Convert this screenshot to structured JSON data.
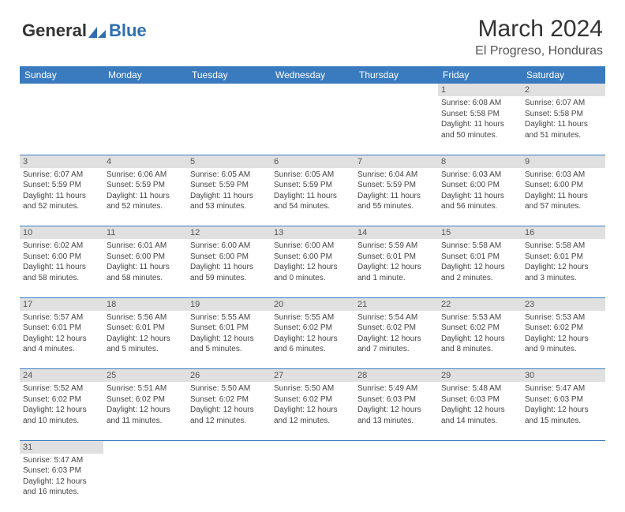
{
  "logo": {
    "part1": "General",
    "part2": "Blue"
  },
  "title": "March 2024",
  "location": "El Progreso, Honduras",
  "colors": {
    "header_bg": "#3a7bbf",
    "header_text": "#ffffff",
    "daynum_bg": "#e0e0e0",
    "daynum_text": "#555555",
    "cell_text": "#444444",
    "title_text": "#333333",
    "logo_dark": "#333333",
    "logo_blue": "#2f6fb1",
    "page_bg": "#ffffff",
    "divider": "#3a7bbf"
  },
  "typography": {
    "month_title_pt": 30,
    "location_pt": 16,
    "weekday_pt": 12,
    "daynum_pt": 11,
    "cell_pt": 10,
    "logo_pt": 22
  },
  "weekdays": [
    "Sunday",
    "Monday",
    "Tuesday",
    "Wednesday",
    "Thursday",
    "Friday",
    "Saturday"
  ],
  "weeks": [
    [
      null,
      null,
      null,
      null,
      null,
      {
        "n": "1",
        "sunrise": "Sunrise: 6:08 AM",
        "sunset": "Sunset: 5:58 PM",
        "day1": "Daylight: 11 hours",
        "day2": "and 50 minutes."
      },
      {
        "n": "2",
        "sunrise": "Sunrise: 6:07 AM",
        "sunset": "Sunset: 5:58 PM",
        "day1": "Daylight: 11 hours",
        "day2": "and 51 minutes."
      }
    ],
    [
      {
        "n": "3",
        "sunrise": "Sunrise: 6:07 AM",
        "sunset": "Sunset: 5:59 PM",
        "day1": "Daylight: 11 hours",
        "day2": "and 52 minutes."
      },
      {
        "n": "4",
        "sunrise": "Sunrise: 6:06 AM",
        "sunset": "Sunset: 5:59 PM",
        "day1": "Daylight: 11 hours",
        "day2": "and 52 minutes."
      },
      {
        "n": "5",
        "sunrise": "Sunrise: 6:05 AM",
        "sunset": "Sunset: 5:59 PM",
        "day1": "Daylight: 11 hours",
        "day2": "and 53 minutes."
      },
      {
        "n": "6",
        "sunrise": "Sunrise: 6:05 AM",
        "sunset": "Sunset: 5:59 PM",
        "day1": "Daylight: 11 hours",
        "day2": "and 54 minutes."
      },
      {
        "n": "7",
        "sunrise": "Sunrise: 6:04 AM",
        "sunset": "Sunset: 5:59 PM",
        "day1": "Daylight: 11 hours",
        "day2": "and 55 minutes."
      },
      {
        "n": "8",
        "sunrise": "Sunrise: 6:03 AM",
        "sunset": "Sunset: 6:00 PM",
        "day1": "Daylight: 11 hours",
        "day2": "and 56 minutes."
      },
      {
        "n": "9",
        "sunrise": "Sunrise: 6:03 AM",
        "sunset": "Sunset: 6:00 PM",
        "day1": "Daylight: 11 hours",
        "day2": "and 57 minutes."
      }
    ],
    [
      {
        "n": "10",
        "sunrise": "Sunrise: 6:02 AM",
        "sunset": "Sunset: 6:00 PM",
        "day1": "Daylight: 11 hours",
        "day2": "and 58 minutes."
      },
      {
        "n": "11",
        "sunrise": "Sunrise: 6:01 AM",
        "sunset": "Sunset: 6:00 PM",
        "day1": "Daylight: 11 hours",
        "day2": "and 58 minutes."
      },
      {
        "n": "12",
        "sunrise": "Sunrise: 6:00 AM",
        "sunset": "Sunset: 6:00 PM",
        "day1": "Daylight: 11 hours",
        "day2": "and 59 minutes."
      },
      {
        "n": "13",
        "sunrise": "Sunrise: 6:00 AM",
        "sunset": "Sunset: 6:00 PM",
        "day1": "Daylight: 12 hours",
        "day2": "and 0 minutes."
      },
      {
        "n": "14",
        "sunrise": "Sunrise: 5:59 AM",
        "sunset": "Sunset: 6:01 PM",
        "day1": "Daylight: 12 hours",
        "day2": "and 1 minute."
      },
      {
        "n": "15",
        "sunrise": "Sunrise: 5:58 AM",
        "sunset": "Sunset: 6:01 PM",
        "day1": "Daylight: 12 hours",
        "day2": "and 2 minutes."
      },
      {
        "n": "16",
        "sunrise": "Sunrise: 5:58 AM",
        "sunset": "Sunset: 6:01 PM",
        "day1": "Daylight: 12 hours",
        "day2": "and 3 minutes."
      }
    ],
    [
      {
        "n": "17",
        "sunrise": "Sunrise: 5:57 AM",
        "sunset": "Sunset: 6:01 PM",
        "day1": "Daylight: 12 hours",
        "day2": "and 4 minutes."
      },
      {
        "n": "18",
        "sunrise": "Sunrise: 5:56 AM",
        "sunset": "Sunset: 6:01 PM",
        "day1": "Daylight: 12 hours",
        "day2": "and 5 minutes."
      },
      {
        "n": "19",
        "sunrise": "Sunrise: 5:55 AM",
        "sunset": "Sunset: 6:01 PM",
        "day1": "Daylight: 12 hours",
        "day2": "and 5 minutes."
      },
      {
        "n": "20",
        "sunrise": "Sunrise: 5:55 AM",
        "sunset": "Sunset: 6:02 PM",
        "day1": "Daylight: 12 hours",
        "day2": "and 6 minutes."
      },
      {
        "n": "21",
        "sunrise": "Sunrise: 5:54 AM",
        "sunset": "Sunset: 6:02 PM",
        "day1": "Daylight: 12 hours",
        "day2": "and 7 minutes."
      },
      {
        "n": "22",
        "sunrise": "Sunrise: 5:53 AM",
        "sunset": "Sunset: 6:02 PM",
        "day1": "Daylight: 12 hours",
        "day2": "and 8 minutes."
      },
      {
        "n": "23",
        "sunrise": "Sunrise: 5:53 AM",
        "sunset": "Sunset: 6:02 PM",
        "day1": "Daylight: 12 hours",
        "day2": "and 9 minutes."
      }
    ],
    [
      {
        "n": "24",
        "sunrise": "Sunrise: 5:52 AM",
        "sunset": "Sunset: 6:02 PM",
        "day1": "Daylight: 12 hours",
        "day2": "and 10 minutes."
      },
      {
        "n": "25",
        "sunrise": "Sunrise: 5:51 AM",
        "sunset": "Sunset: 6:02 PM",
        "day1": "Daylight: 12 hours",
        "day2": "and 11 minutes."
      },
      {
        "n": "26",
        "sunrise": "Sunrise: 5:50 AM",
        "sunset": "Sunset: 6:02 PM",
        "day1": "Daylight: 12 hours",
        "day2": "and 12 minutes."
      },
      {
        "n": "27",
        "sunrise": "Sunrise: 5:50 AM",
        "sunset": "Sunset: 6:02 PM",
        "day1": "Daylight: 12 hours",
        "day2": "and 12 minutes."
      },
      {
        "n": "28",
        "sunrise": "Sunrise: 5:49 AM",
        "sunset": "Sunset: 6:03 PM",
        "day1": "Daylight: 12 hours",
        "day2": "and 13 minutes."
      },
      {
        "n": "29",
        "sunrise": "Sunrise: 5:48 AM",
        "sunset": "Sunset: 6:03 PM",
        "day1": "Daylight: 12 hours",
        "day2": "and 14 minutes."
      },
      {
        "n": "30",
        "sunrise": "Sunrise: 5:47 AM",
        "sunset": "Sunset: 6:03 PM",
        "day1": "Daylight: 12 hours",
        "day2": "and 15 minutes."
      }
    ],
    [
      {
        "n": "31",
        "sunrise": "Sunrise: 5:47 AM",
        "sunset": "Sunset: 6:03 PM",
        "day1": "Daylight: 12 hours",
        "day2": "and 16 minutes."
      },
      null,
      null,
      null,
      null,
      null,
      null
    ]
  ]
}
